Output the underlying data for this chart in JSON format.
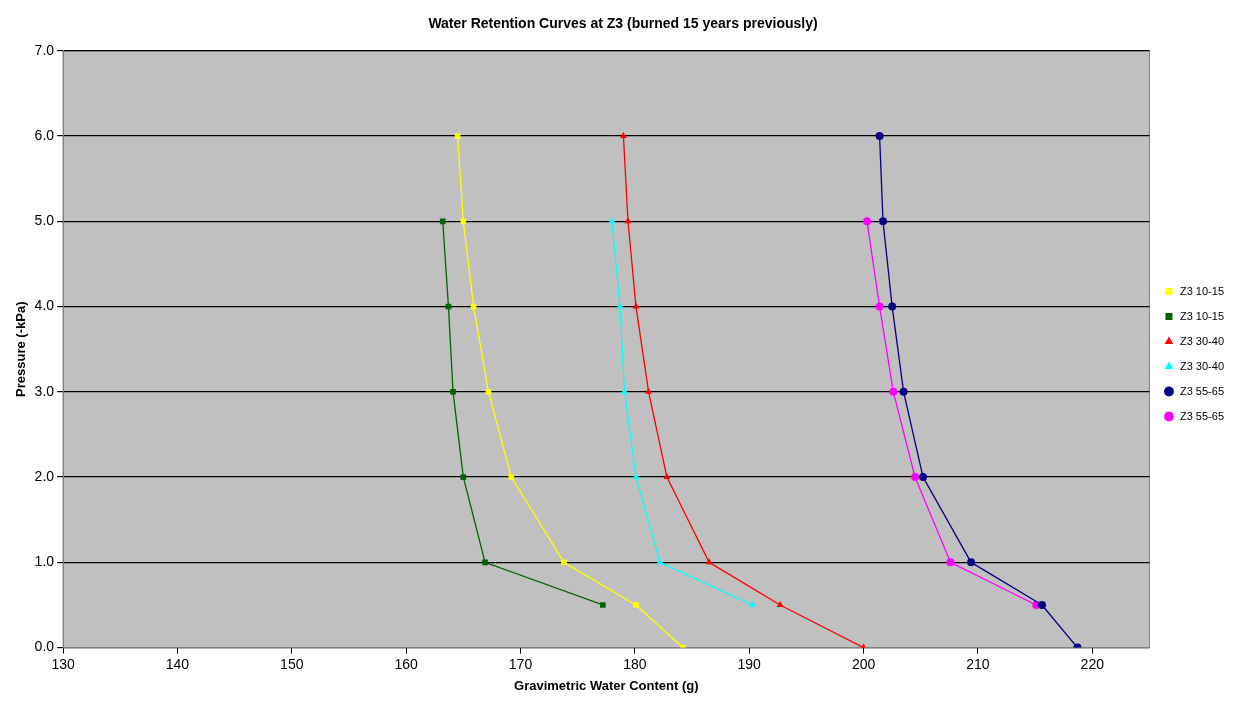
{
  "chart_data": {
    "type": "line",
    "title": "Water Retention Curves at Z3 (burned 15 years previously)",
    "xlabel": "Gravimetric Water Content (g)",
    "ylabel": "Pressure (-kPa)",
    "xlim": [
      130,
      225
    ],
    "xticks": [
      130,
      140,
      150,
      160,
      170,
      180,
      190,
      200,
      210,
      220
    ],
    "ylim": [
      0,
      7
    ],
    "yticks": [
      {
        "value": 0,
        "label": "0.0"
      },
      {
        "value": 1,
        "label": "1.0"
      },
      {
        "value": 2,
        "label": "2.0"
      },
      {
        "value": 3,
        "label": "3.0"
      },
      {
        "value": 4,
        "label": "4.0"
      },
      {
        "value": 5,
        "label": "5.0"
      },
      {
        "value": 6,
        "label": "6.0"
      },
      {
        "value": 7,
        "label": "7.0"
      }
    ],
    "grid": "y",
    "legend": "right",
    "line_style": "solid",
    "series": [
      {
        "name": "Z3 10-15",
        "color": "#ffff00",
        "marker": "square",
        "x": [
          164.5,
          165.0,
          165.9,
          167.2,
          169.2,
          173.8,
          180.1,
          184.2
        ],
        "values": [
          6,
          5,
          4,
          3,
          2,
          1,
          0.5,
          0
        ]
      },
      {
        "name": "Z3 10-15",
        "color": "#006400",
        "marker": "square",
        "x": [
          163.2,
          163.7,
          164.1,
          165.0,
          166.9,
          177.2
        ],
        "values": [
          5,
          4,
          3,
          2,
          1,
          0.5
        ]
      },
      {
        "name": "Z3 30-40",
        "color": "#ff0000",
        "marker": "triangle",
        "x": [
          179.0,
          179.4,
          180.1,
          181.2,
          182.8,
          186.5,
          192.7,
          200.0
        ],
        "values": [
          6,
          5,
          4,
          3,
          2,
          1,
          0.5,
          0
        ]
      },
      {
        "name": "Z3 30-40",
        "color": "#00ffff",
        "marker": "triangle",
        "x": [
          178.0,
          178.7,
          179.1,
          180.1,
          182.2,
          190.3
        ],
        "values": [
          5,
          4,
          3,
          2,
          1,
          0.5
        ]
      },
      {
        "name": "Z3 55-65",
        "color": "#000080",
        "marker": "circle",
        "x": [
          201.4,
          201.7,
          202.5,
          203.5,
          205.2,
          209.4,
          215.6,
          218.7
        ],
        "values": [
          6,
          5,
          4,
          3,
          2,
          1,
          0.5,
          0
        ]
      },
      {
        "name": "Z3 55-65",
        "color": "#ff00ff",
        "marker": "circle",
        "x": [
          200.3,
          201.4,
          202.6,
          204.5,
          207.6,
          215.1
        ],
        "values": [
          5,
          4,
          3,
          2,
          1,
          0.5
        ]
      }
    ]
  }
}
